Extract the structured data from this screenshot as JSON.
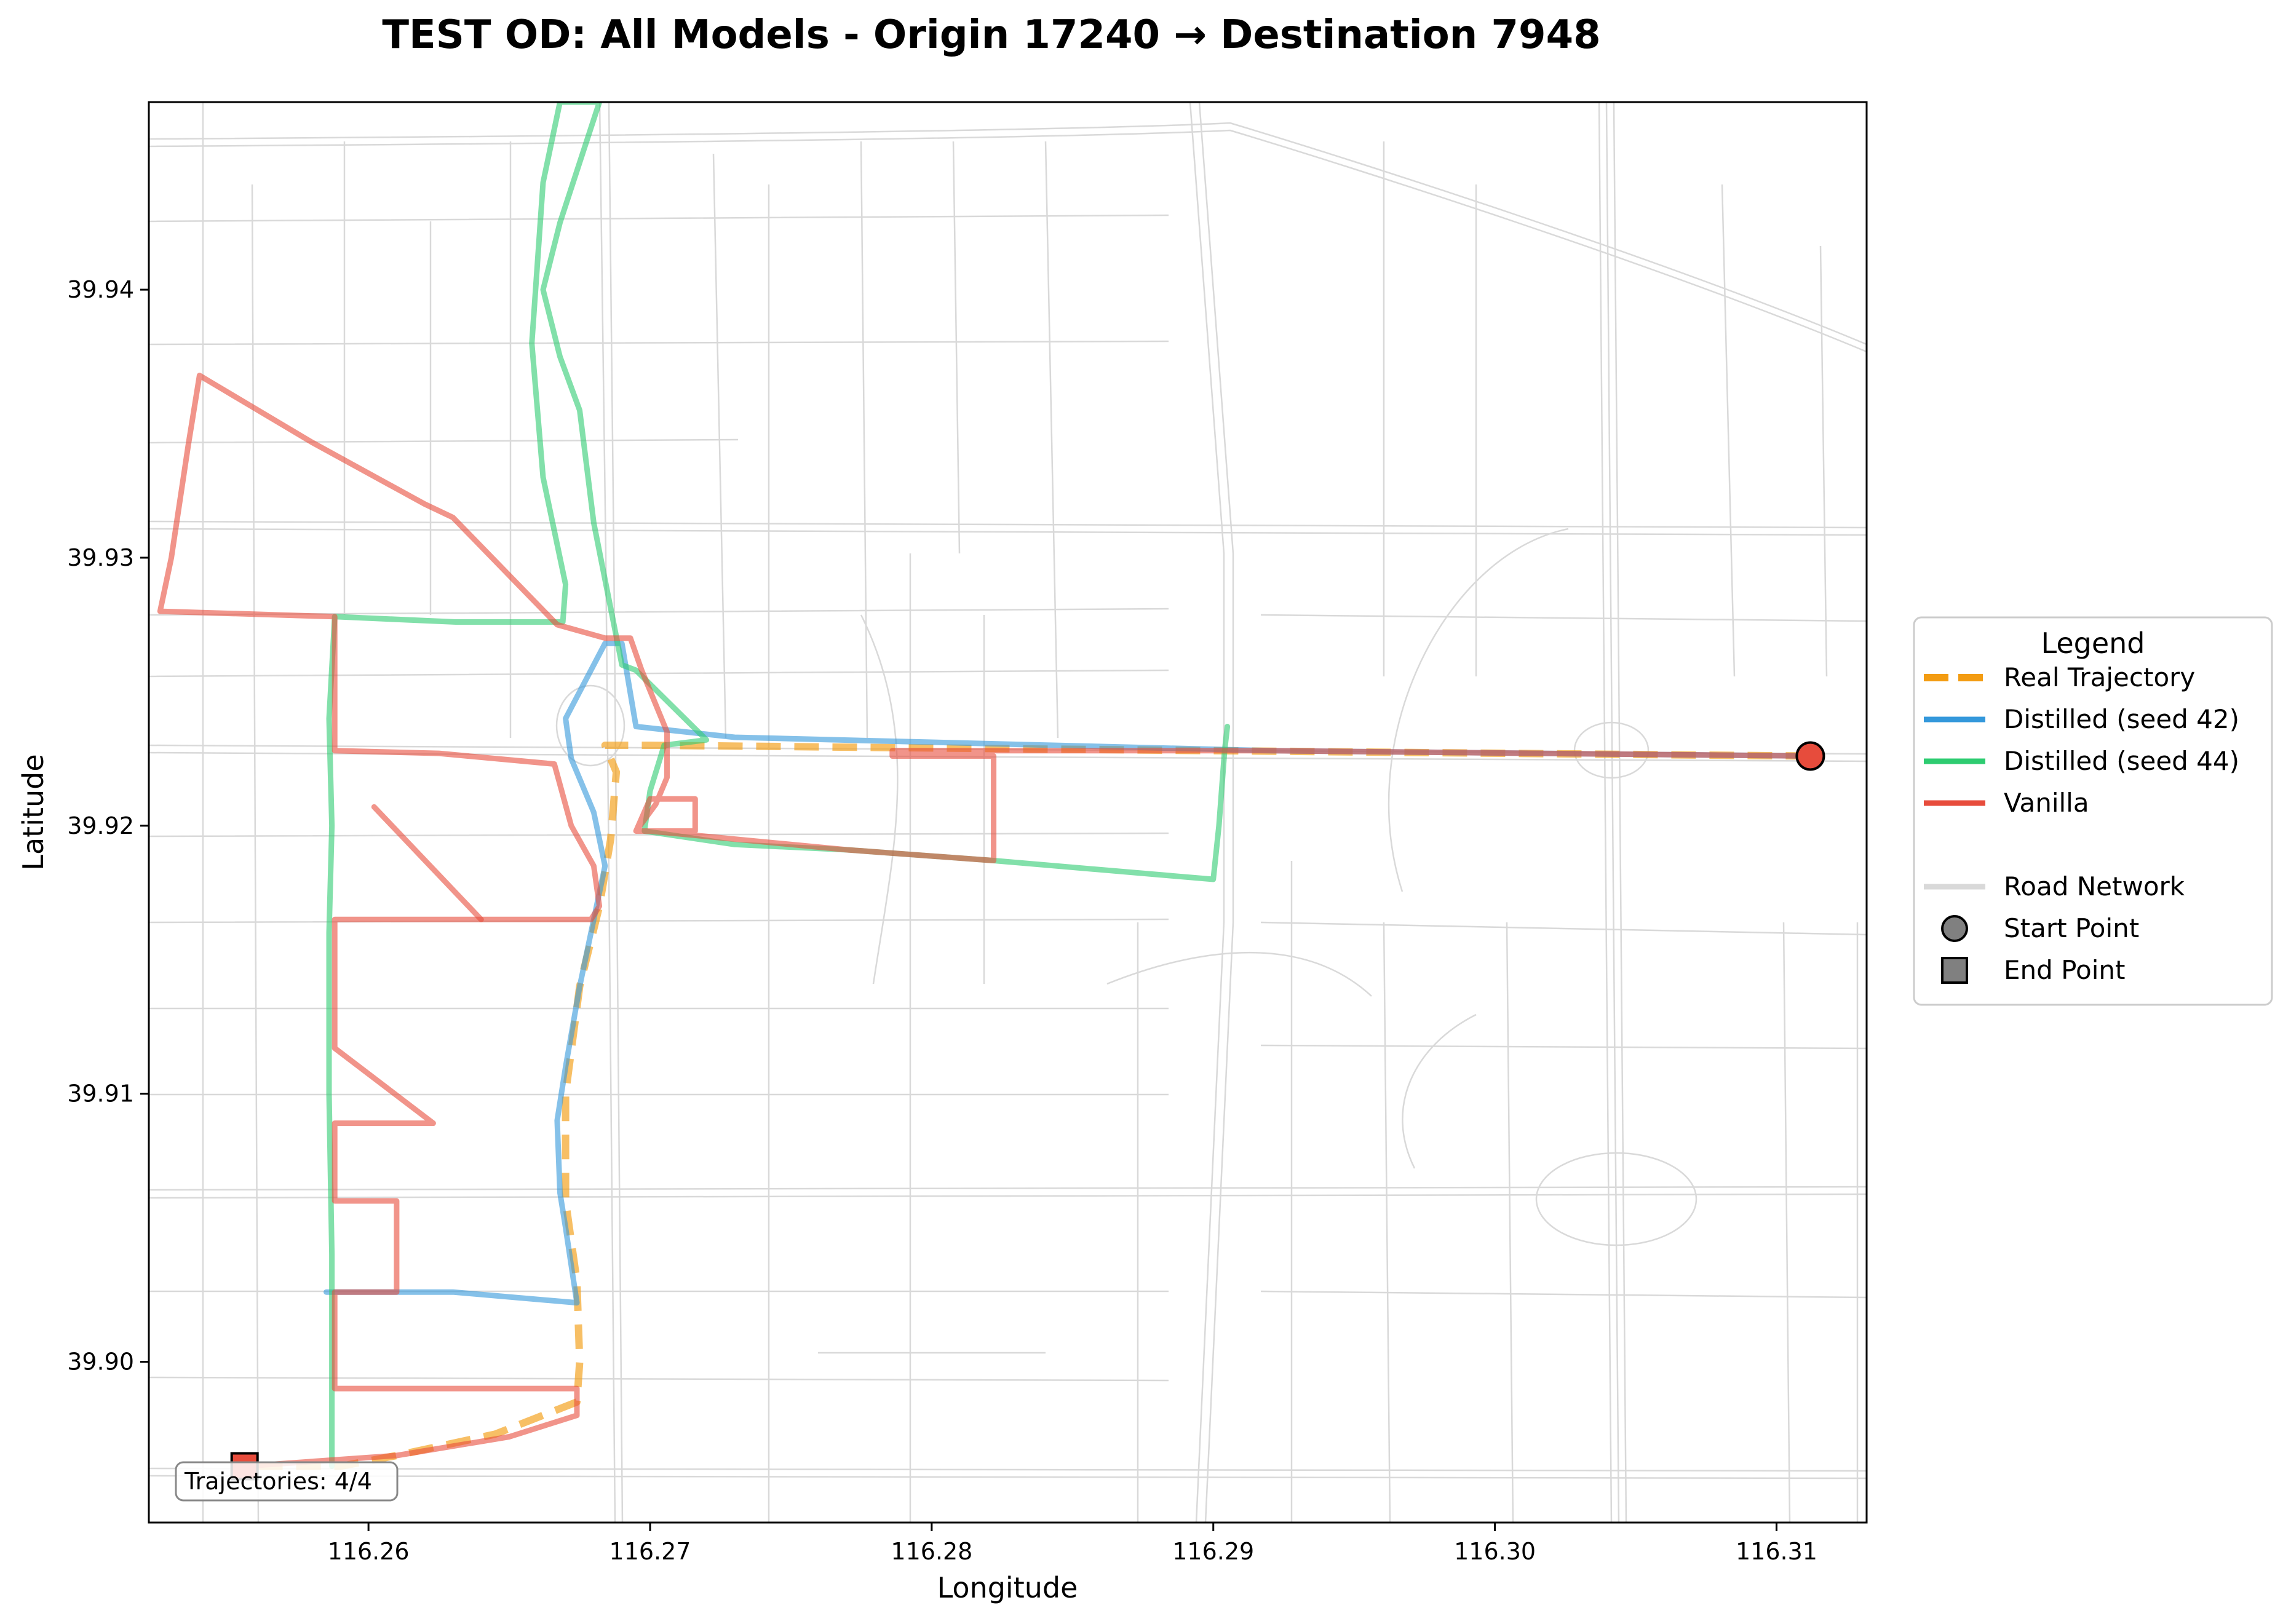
{
  "chart_data": {
    "type": "line",
    "title": "TEST OD: All Models - Origin 17240 → Destination 7948",
    "xlabel": "Longitude",
    "ylabel": "Latitude",
    "xlim": [
      116.2522,
      116.3132
    ],
    "ylim": [
      39.894,
      39.947
    ],
    "xticks": [
      {
        "value": 116.26,
        "label": "116.26"
      },
      {
        "value": 116.27,
        "label": "116.27"
      },
      {
        "value": 116.28,
        "label": "116.28"
      },
      {
        "value": 116.29,
        "label": "116.29"
      },
      {
        "value": 116.3,
        "label": "116.30"
      },
      {
        "value": 116.31,
        "label": "116.31"
      }
    ],
    "yticks": [
      {
        "value": 39.9,
        "label": "39.90"
      },
      {
        "value": 39.91,
        "label": "39.91"
      },
      {
        "value": 39.92,
        "label": "39.92"
      },
      {
        "value": 39.93,
        "label": "39.93"
      },
      {
        "value": 39.94,
        "label": "39.94"
      }
    ],
    "grid": false,
    "legend_position": "right",
    "legend_title": "Legend",
    "legend": [
      {
        "label": "Real Trajectory",
        "kind": "line",
        "color": "#f39c12",
        "dashed": true
      },
      {
        "label": "Distilled (seed 42)",
        "kind": "line",
        "color": "#3498db",
        "dashed": false
      },
      {
        "label": "Distilled (seed 44)",
        "kind": "line",
        "color": "#2ecc71",
        "dashed": false
      },
      {
        "label": "Vanilla",
        "kind": "line",
        "color": "#e74c3c",
        "dashed": false
      },
      {
        "label": "",
        "kind": "spacer"
      },
      {
        "label": "Road Network",
        "kind": "line",
        "color": "#d9d9d9",
        "dashed": false
      },
      {
        "label": "Start Point",
        "kind": "circle",
        "color": "#808080"
      },
      {
        "label": "End Point",
        "kind": "square",
        "color": "#808080"
      }
    ],
    "annotation": "Trajectories: 4/4",
    "start_point": {
      "lon": 116.3112,
      "lat": 39.9226,
      "color": "#e74c3c"
    },
    "end_point": {
      "lon": 116.2556,
      "lat": 39.8961,
      "color": "#e74c3c"
    },
    "series": [
      {
        "name": "Real Trajectory",
        "color": "#f39c12",
        "dashed": true,
        "opacity": 0.65,
        "width": 12,
        "points": [
          [
            116.3112,
            39.9226
          ],
          [
            116.29,
            39.9228
          ],
          [
            116.27,
            39.923
          ],
          [
            116.2684,
            39.923
          ],
          [
            116.2688,
            39.922
          ],
          [
            116.2686,
            39.9195
          ],
          [
            116.2682,
            39.917
          ],
          [
            116.2675,
            39.914
          ],
          [
            116.267,
            39.91
          ],
          [
            116.267,
            39.906
          ],
          [
            116.2674,
            39.903
          ],
          [
            116.2675,
            39.9
          ],
          [
            116.2674,
            39.8985
          ],
          [
            116.2645,
            39.8973
          ],
          [
            116.261,
            39.8965
          ],
          [
            116.259,
            39.8961
          ],
          [
            116.2556,
            39.8961
          ]
        ]
      },
      {
        "name": "Distilled (seed 42)",
        "color": "#3498db",
        "dashed": false,
        "opacity": 0.6,
        "width": 9,
        "points": [
          [
            116.3112,
            39.9226
          ],
          [
            116.292,
            39.9228
          ],
          [
            116.273,
            39.9233
          ],
          [
            116.2695,
            39.9237
          ],
          [
            116.269,
            39.9268
          ],
          [
            116.2684,
            39.9268
          ],
          [
            116.267,
            39.924
          ],
          [
            116.2672,
            39.9225
          ],
          [
            116.268,
            39.9205
          ],
          [
            116.2684,
            39.9185
          ],
          [
            116.268,
            39.9165
          ],
          [
            116.2675,
            39.914
          ],
          [
            116.267,
            39.911
          ],
          [
            116.2667,
            39.909
          ],
          [
            116.2668,
            39.9063
          ],
          [
            116.267,
            39.905
          ],
          [
            116.2674,
            39.9022
          ],
          [
            116.263,
            39.9026
          ],
          [
            116.2585,
            39.9026
          ]
        ]
      },
      {
        "name": "Distilled (seed 44)",
        "color": "#2ecc71",
        "dashed": false,
        "opacity": 0.6,
        "width": 9,
        "points": [
          [
            116.2905,
            39.9237
          ],
          [
            116.2904,
            39.9228
          ],
          [
            116.2902,
            39.92
          ],
          [
            116.29,
            39.918
          ],
          [
            116.2822,
            39.9187
          ],
          [
            116.277,
            39.9191
          ],
          [
            116.273,
            39.9193
          ],
          [
            116.2698,
            39.9198
          ],
          [
            116.27,
            39.9213
          ],
          [
            116.2705,
            39.923
          ],
          [
            116.272,
            39.9232
          ],
          [
            116.2695,
            39.9258
          ],
          [
            116.269,
            39.926
          ],
          [
            116.268,
            39.9313
          ],
          [
            116.2675,
            39.9355
          ],
          [
            116.2668,
            39.9375
          ],
          [
            116.2662,
            39.94
          ],
          [
            116.2668,
            39.9425
          ],
          [
            116.2682,
            39.947
          ],
          [
            116.2668,
            39.947
          ],
          [
            116.2662,
            39.944
          ],
          [
            116.2658,
            39.938
          ],
          [
            116.2662,
            39.933
          ],
          [
            116.267,
            39.929
          ],
          [
            116.2669,
            39.9276
          ],
          [
            116.2631,
            39.9276
          ],
          [
            116.2588,
            39.9278
          ],
          [
            116.2586,
            39.924
          ],
          [
            116.2587,
            39.92
          ],
          [
            116.2586,
            39.916
          ],
          [
            116.2586,
            39.91
          ],
          [
            116.2587,
            39.904
          ],
          [
            116.2587,
            39.899
          ],
          [
            116.2587,
            39.8961
          ]
        ]
      },
      {
        "name": "Vanilla",
        "color": "#e74c3c",
        "dashed": false,
        "opacity": 0.6,
        "width": 9,
        "points": [
          [
            116.3112,
            39.9226
          ],
          [
            116.292,
            39.9228
          ],
          [
            116.28,
            39.9228
          ],
          [
            116.2786,
            39.9228
          ],
          [
            116.2786,
            39.9226
          ],
          [
            116.2822,
            39.9226
          ],
          [
            116.2822,
            39.9187
          ],
          [
            116.277,
            39.9191
          ],
          [
            116.27,
            39.9198
          ],
          [
            116.2695,
            39.9198
          ],
          [
            116.27,
            39.921
          ],
          [
            116.2716,
            39.921
          ],
          [
            116.2716,
            39.9198
          ],
          [
            116.2695,
            39.9198
          ],
          [
            116.2702,
            39.9208
          ],
          [
            116.2706,
            39.9218
          ],
          [
            116.2706,
            39.9235
          ],
          [
            116.2697,
            39.9258
          ],
          [
            116.2693,
            39.927
          ],
          [
            116.2684,
            39.927
          ],
          [
            116.2667,
            39.9275
          ],
          [
            116.263,
            39.9315
          ],
          [
            116.262,
            39.932
          ],
          [
            116.258,
            39.9343
          ],
          [
            116.254,
            39.9368
          ],
          [
            116.2536,
            39.9342
          ],
          [
            116.253,
            39.93
          ],
          [
            116.2526,
            39.928
          ],
          [
            116.2588,
            39.9278
          ],
          [
            116.2588,
            39.9228
          ],
          [
            116.2625,
            39.9227
          ],
          [
            116.2666,
            39.9223
          ],
          [
            116.2672,
            39.92
          ],
          [
            116.268,
            39.9185
          ],
          [
            116.2682,
            39.917
          ],
          [
            116.2679,
            39.9165
          ],
          [
            116.264,
            39.9165
          ],
          [
            116.2588,
            39.9165
          ],
          [
            116.2588,
            39.9117
          ],
          [
            116.2623,
            39.9089
          ],
          [
            116.2588,
            39.9089
          ],
          [
            116.2588,
            39.906
          ],
          [
            116.261,
            39.906
          ],
          [
            116.261,
            39.9026
          ],
          [
            116.2588,
            39.9026
          ],
          [
            116.2588,
            39.899
          ],
          [
            116.2674,
            39.899
          ],
          [
            116.2674,
            39.898
          ],
          [
            116.265,
            39.8972
          ],
          [
            116.261,
            39.8965
          ],
          [
            116.2556,
            39.8961
          ]
        ]
      },
      {
        "name": "Vanilla branch",
        "color": "#e74c3c",
        "dashed": false,
        "opacity": 0.6,
        "width": 9,
        "points": [
          [
            116.264,
            39.9165
          ],
          [
            116.2602,
            39.9207
          ]
        ]
      }
    ]
  }
}
